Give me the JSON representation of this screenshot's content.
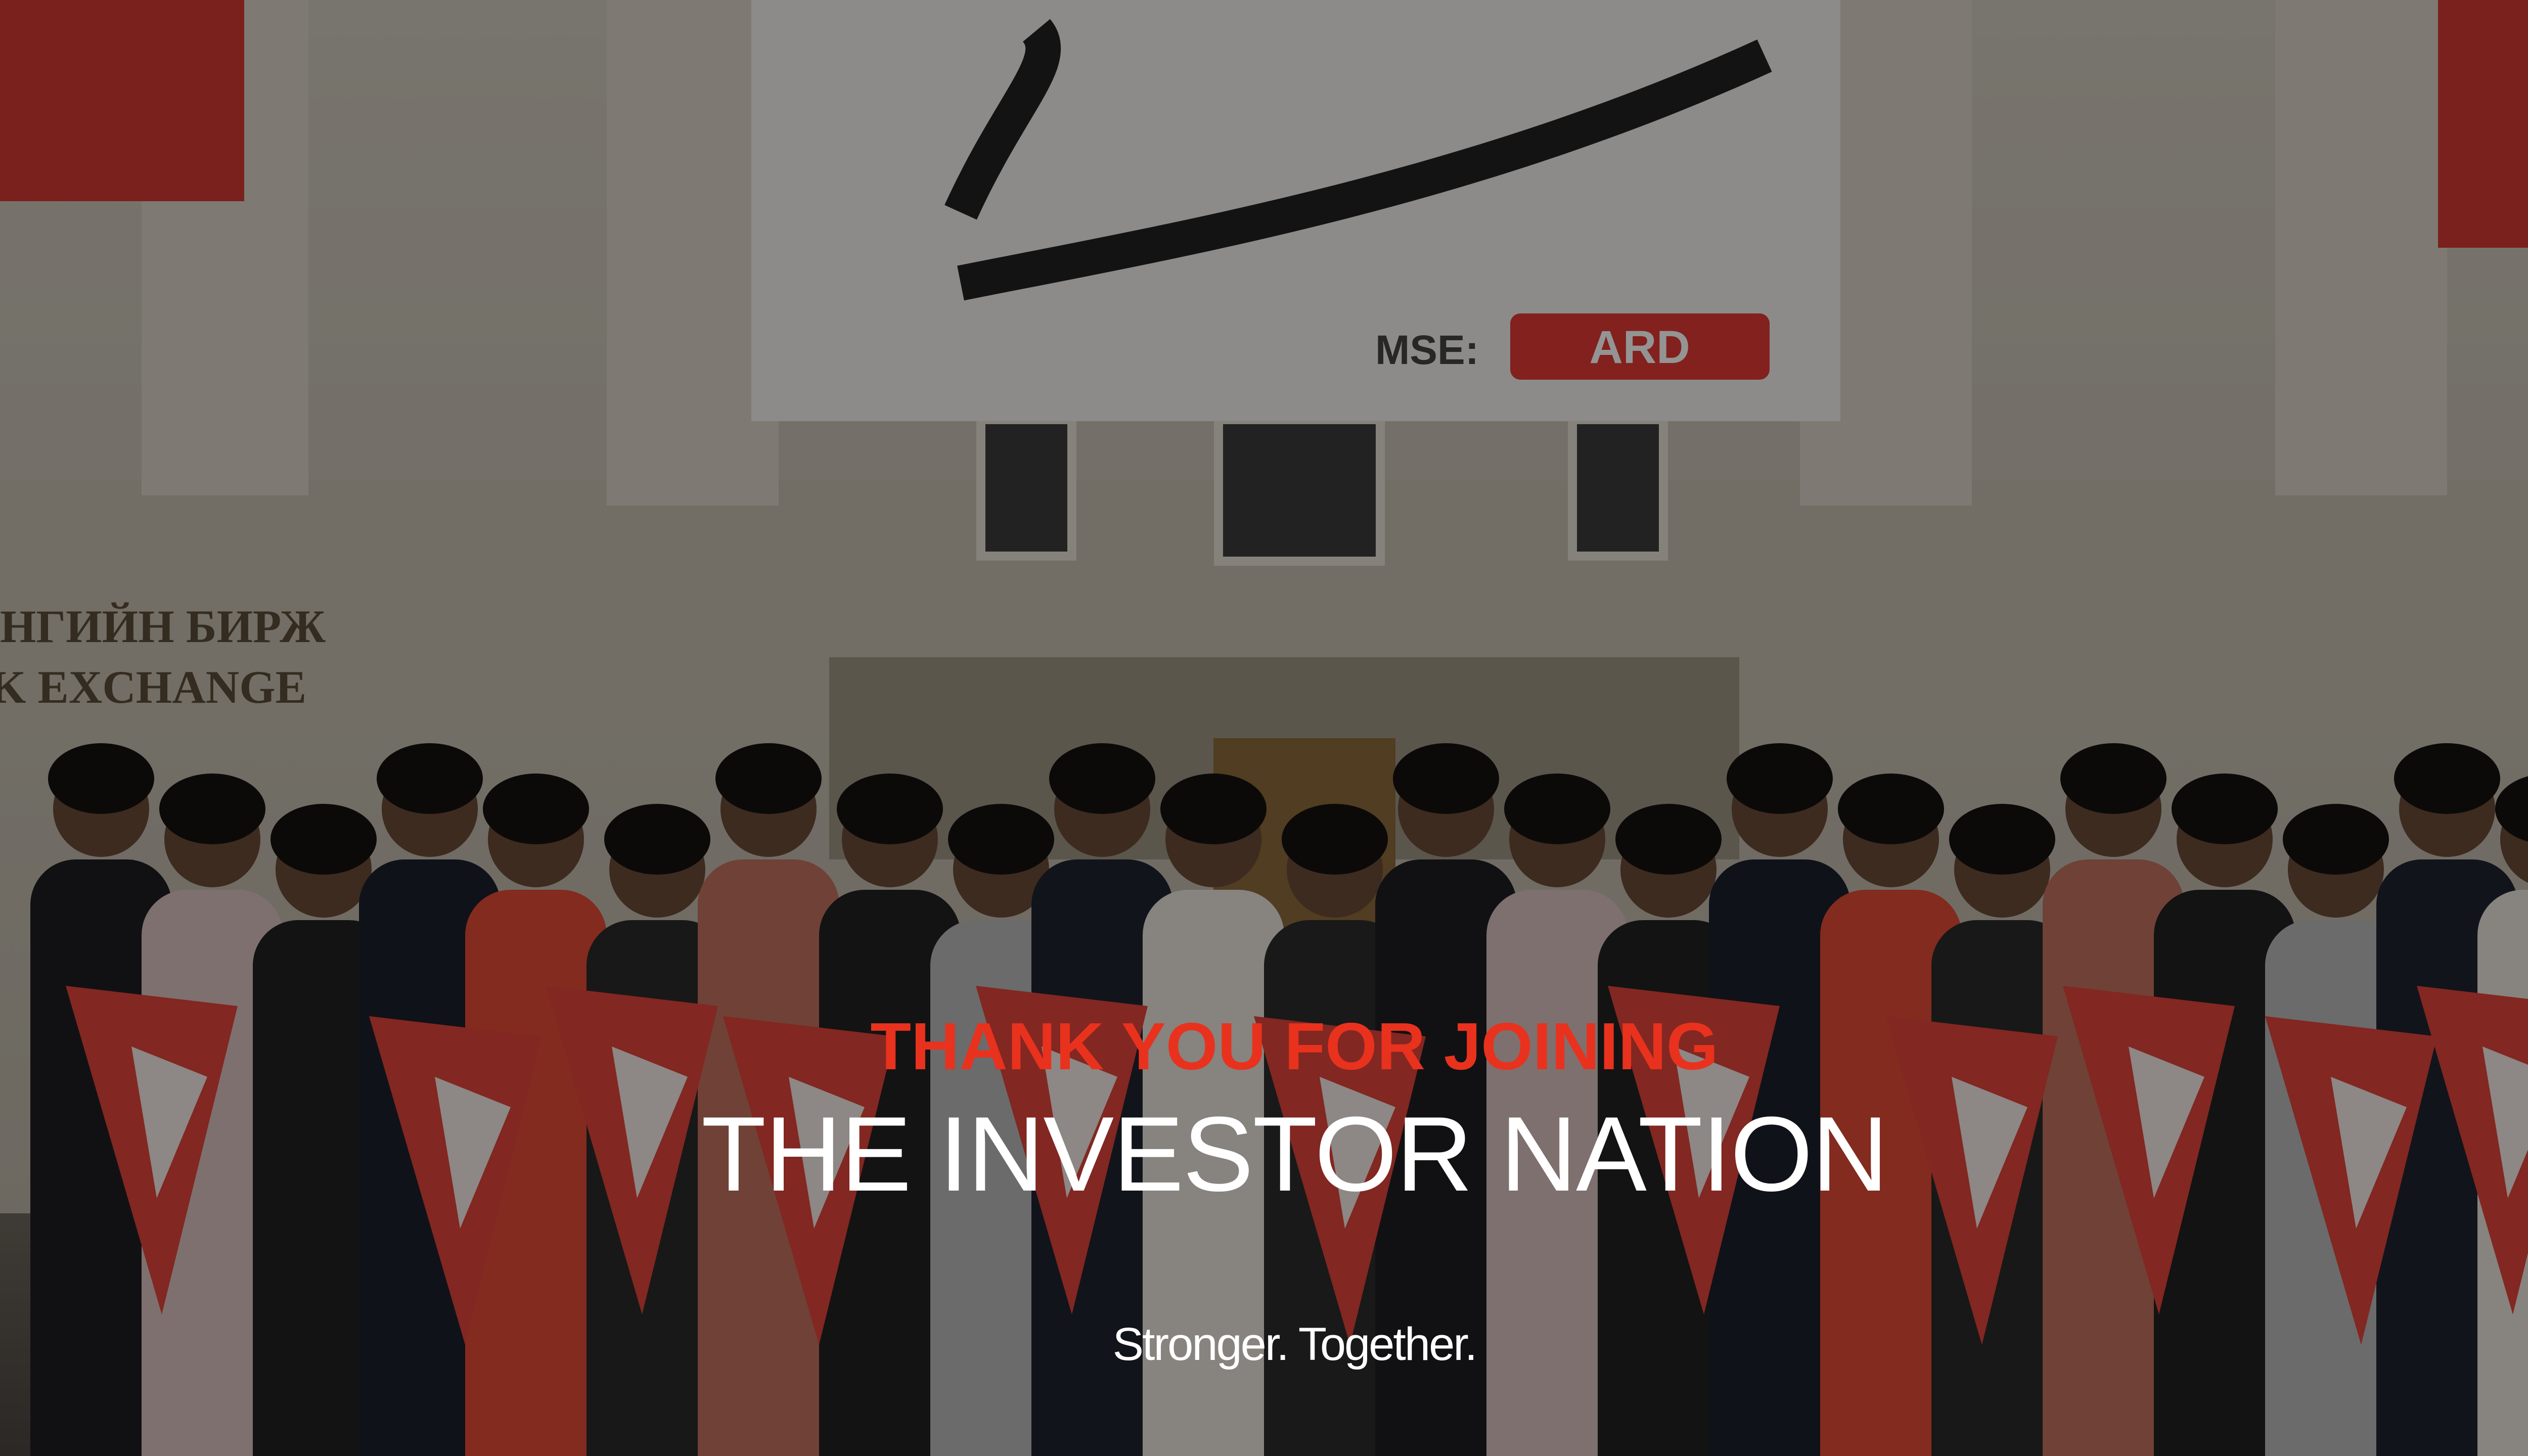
{
  "slide": {
    "headline": "THANK YOU FOR JOINING",
    "title": "THE INVESTOR NATION",
    "tagline": "Stronger. Together."
  },
  "photo": {
    "banner": {
      "prefix": "MSE:",
      "brand": "ARD"
    },
    "building_sign": [
      "НГИЙН БИРЖ",
      "K EXCHANGE"
    ]
  }
}
